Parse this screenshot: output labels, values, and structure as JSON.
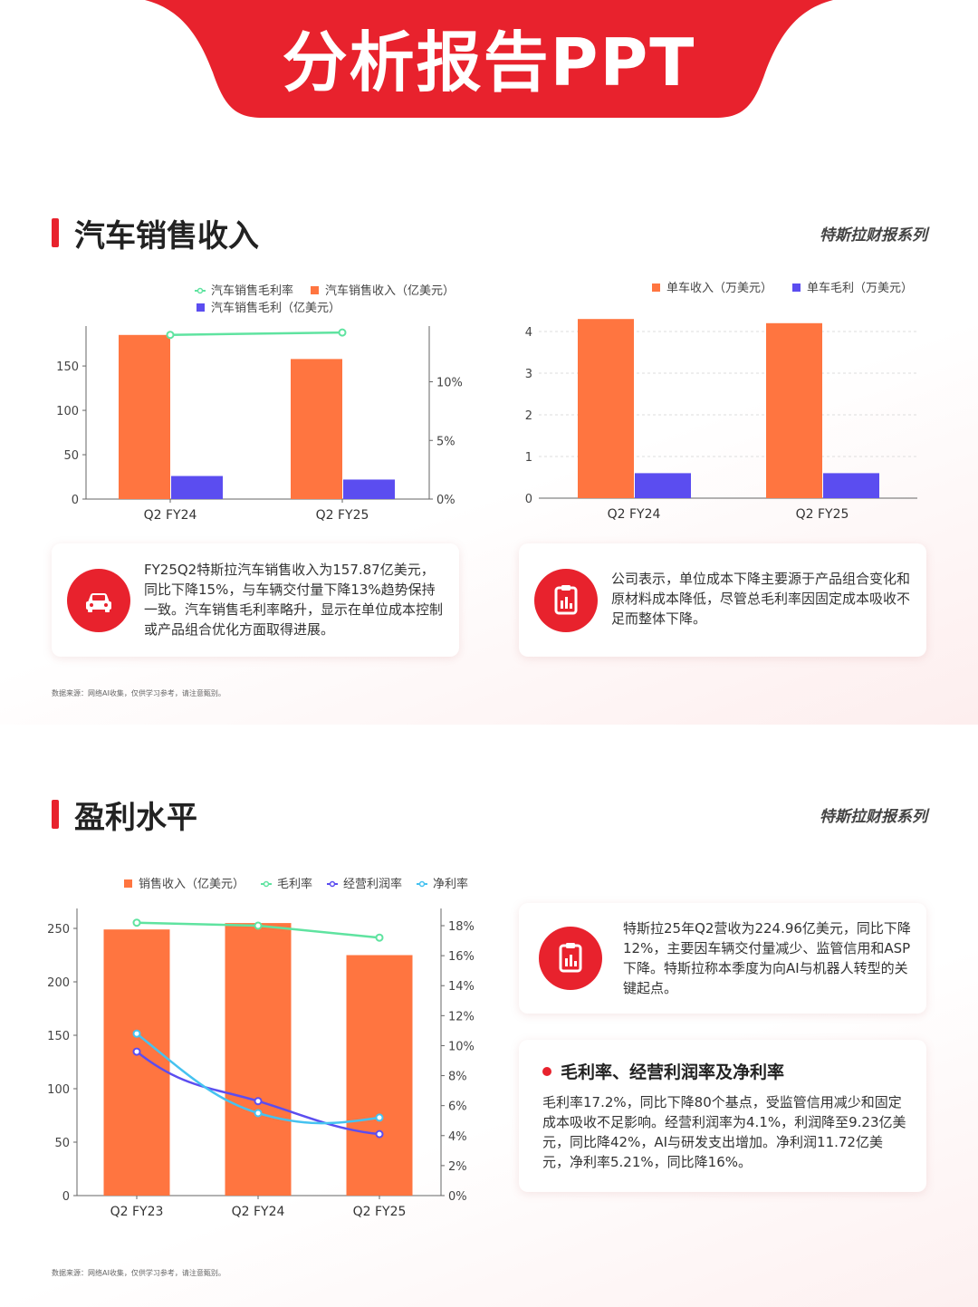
{
  "banner": {
    "title": "分析报告PPT",
    "color": "#e8222d"
  },
  "section1": {
    "title": "汽车销售收入",
    "series_tag": "特斯拉财报系列",
    "card_left": "FY25Q2特斯拉汽车销售收入为157.87亿美元，同比下降15%，与车辆交付量下降13%趋势保持一致。汽车销售毛利率略升，显示在单位成本控制或产品组合优化方面取得进展。",
    "card_right": "公司表示，单位成本下降主要源于产品组合变化和原材料成本降低，尽管总毛利率因固定成本吸收不足而整体下降。",
    "footnote": "数据来源：网络AI收集，仅供学习参考，请注意甄别。",
    "icons": {
      "left": "car-icon",
      "right": "report-icon"
    }
  },
  "section2": {
    "title": "盈利水平",
    "series_tag": "特斯拉财报系列",
    "card_top": "特斯拉25年Q2营收为224.96亿美元，同比下降12%，主要因车辆交付量减少、监管信用和ASP下降。特斯拉称本季度为向AI与机器人转型的关键起点。",
    "sub_title": "毛利率、经营利润率及净利率",
    "card_bottom": "毛利率17.2%，同比下降80个基点，受监管信用减少和固定成本吸收不足影响。经营利润率为4.1%，利润降至9.23亿美元，同比降42%，AI与研发支出增加。净利润11.72亿美元，净利率5.21%，同比降16%。",
    "footnote": "数据来源：网络AI收集，仅供学习参考，请注意甄别。",
    "icons": {
      "top": "report-icon"
    }
  },
  "colors": {
    "orange": "#ff7540",
    "blue": "#5b4df0",
    "green": "#5fe3a0",
    "cyan": "#45c2f0",
    "purple": "#5b4df0"
  },
  "chart_data": [
    {
      "type": "bar",
      "categories": [
        "Q2 FY24",
        "Q2 FY25"
      ],
      "series": [
        {
          "name": "汽车销售收入（亿美元）",
          "values": [
            185,
            157.87
          ],
          "axis": "left",
          "kind": "bar"
        },
        {
          "name": "汽车销售毛利（亿美元）",
          "values": [
            26,
            22
          ],
          "axis": "left",
          "kind": "bar"
        },
        {
          "name": "汽车销售毛利率",
          "values": [
            0.14,
            0.142
          ],
          "axis": "right",
          "kind": "line"
        }
      ],
      "ylim": [
        0,
        195
      ],
      "y_ticks": [
        "0",
        "50",
        "100",
        "150"
      ],
      "y2lim": [
        0,
        0.1475
      ],
      "y2_ticks": [
        "0%",
        "5%",
        "10%"
      ],
      "legend": "top"
    },
    {
      "type": "bar",
      "categories": [
        "Q2 FY24",
        "Q2 FY25"
      ],
      "series": [
        {
          "name": "单车收入（万美元）",
          "values": [
            4.3,
            4.2
          ]
        },
        {
          "name": "单车毛利（万美元）",
          "values": [
            0.6,
            0.6
          ]
        }
      ],
      "ylim": [
        0,
        4.3
      ],
      "y_ticks": [
        "0",
        "1",
        "2",
        "3",
        "4"
      ],
      "legend": "top-right",
      "grid": true
    },
    {
      "type": "bar",
      "categories": [
        "Q2 FY23",
        "Q2 FY24",
        "Q2 FY25"
      ],
      "series": [
        {
          "name": "销售收入（亿美元）",
          "values": [
            249,
            255,
            225
          ],
          "axis": "left",
          "kind": "bar"
        },
        {
          "name": "毛利率",
          "values": [
            0.182,
            0.18,
            0.172
          ],
          "axis": "right",
          "kind": "line"
        },
        {
          "name": "经营利润率",
          "values": [
            0.096,
            0.063,
            0.041
          ],
          "axis": "right",
          "kind": "line"
        },
        {
          "name": "净利率",
          "values": [
            0.108,
            0.055,
            0.052
          ],
          "axis": "right",
          "kind": "line"
        }
      ],
      "ylim": [
        0,
        260
      ],
      "y_ticks": [
        "0",
        "50",
        "100",
        "150",
        "200",
        "250"
      ],
      "y2lim": [
        0,
        0.19
      ],
      "y2_ticks": [
        "0%",
        "2%",
        "4%",
        "6%",
        "8%",
        "10%",
        "12%",
        "14%",
        "16%",
        "18%"
      ],
      "legend": "top"
    }
  ]
}
